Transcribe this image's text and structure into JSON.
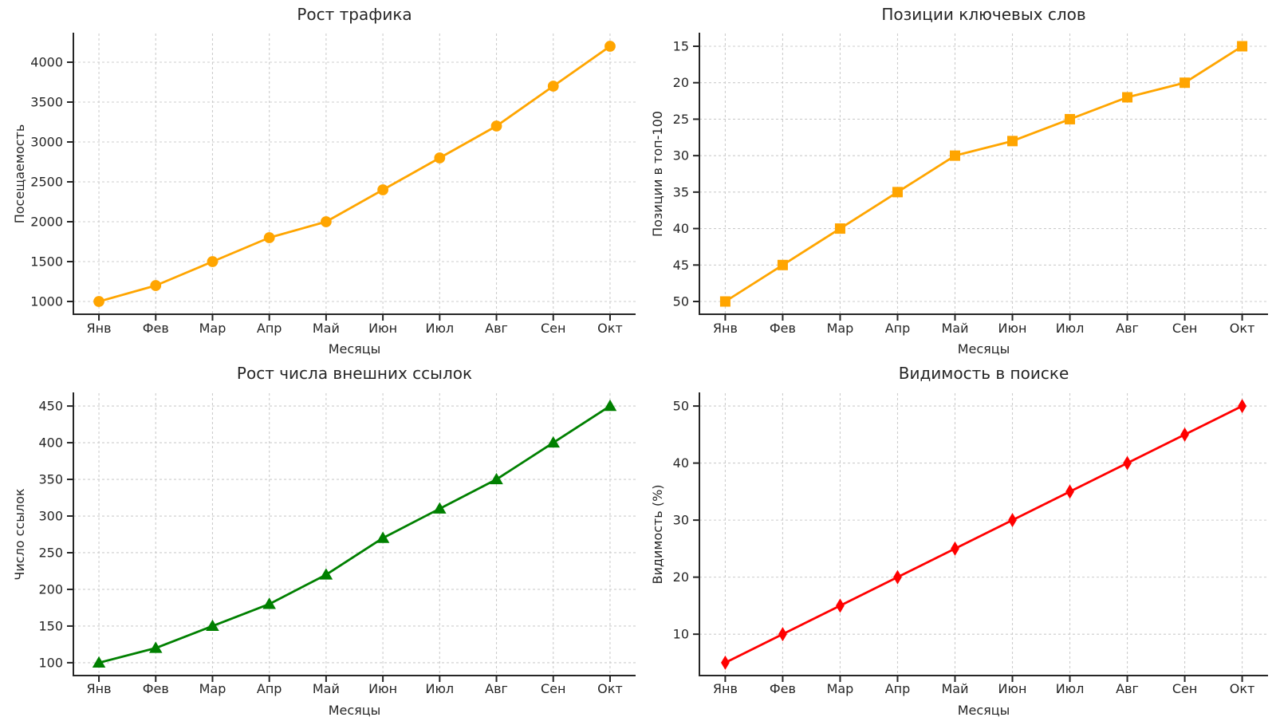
{
  "page": {
    "background_color": "#ffffff",
    "layout": "2x2-subplot-grid"
  },
  "chart_data": [
    {
      "type": "line",
      "title": "Рост трафика",
      "xlabel": "Месяцы",
      "ylabel": "Посещаемость",
      "categories": [
        "Янв",
        "Фев",
        "Мар",
        "Апр",
        "Май",
        "Июн",
        "Июл",
        "Авг",
        "Сен",
        "Окт"
      ],
      "values": [
        1000,
        1200,
        1500,
        1800,
        2000,
        2400,
        2800,
        3200,
        3700,
        4200
      ],
      "yticks": [
        1000,
        1500,
        2000,
        2500,
        3000,
        3500,
        4000
      ],
      "ylim": [
        840,
        4360
      ],
      "y_inverted": false,
      "color": "#FFA500",
      "marker": "circle",
      "grid": true,
      "legend": "none"
    },
    {
      "type": "line",
      "title": "Позиции ключевых слов",
      "xlabel": "Месяцы",
      "ylabel": "Позиции в топ-100",
      "categories": [
        "Янв",
        "Фев",
        "Мар",
        "Апр",
        "Май",
        "Июн",
        "Июл",
        "Авг",
        "Сен",
        "Окт"
      ],
      "values": [
        50,
        45,
        40,
        35,
        30,
        28,
        25,
        22,
        20,
        15
      ],
      "yticks": [
        15,
        20,
        25,
        30,
        35,
        40,
        45,
        50
      ],
      "ylim": [
        13.25,
        51.75
      ],
      "y_inverted": true,
      "color": "#FFA500",
      "marker": "square",
      "grid": true,
      "legend": "none"
    },
    {
      "type": "line",
      "title": "Рост числа внешних ссылок",
      "xlabel": "Месяцы",
      "ylabel": "Число ссылок",
      "categories": [
        "Янв",
        "Фев",
        "Мар",
        "Апр",
        "Май",
        "Июн",
        "Июл",
        "Авг",
        "Сен",
        "Окт"
      ],
      "values": [
        100,
        120,
        150,
        180,
        220,
        270,
        310,
        350,
        400,
        450
      ],
      "yticks": [
        100,
        150,
        200,
        250,
        300,
        350,
        400,
        450
      ],
      "ylim": [
        82.5,
        467.5
      ],
      "y_inverted": false,
      "color": "#008000",
      "marker": "triangle",
      "grid": true,
      "legend": "none"
    },
    {
      "type": "line",
      "title": "Видимость в поиске",
      "xlabel": "Месяцы",
      "ylabel": "Видимость (%)",
      "categories": [
        "Янв",
        "Фев",
        "Мар",
        "Апр",
        "Май",
        "Июн",
        "Июл",
        "Авг",
        "Сен",
        "Окт"
      ],
      "values": [
        5,
        10,
        15,
        20,
        25,
        30,
        35,
        40,
        45,
        50
      ],
      "yticks": [
        10,
        20,
        30,
        40,
        50
      ],
      "ylim": [
        2.75,
        52.25
      ],
      "y_inverted": false,
      "color": "#FF0000",
      "marker": "thin-diamond",
      "grid": true,
      "legend": "none"
    }
  ],
  "style": {
    "grid_color": "#cccccc",
    "axis_color": "#262626",
    "text_color": "#262626"
  }
}
